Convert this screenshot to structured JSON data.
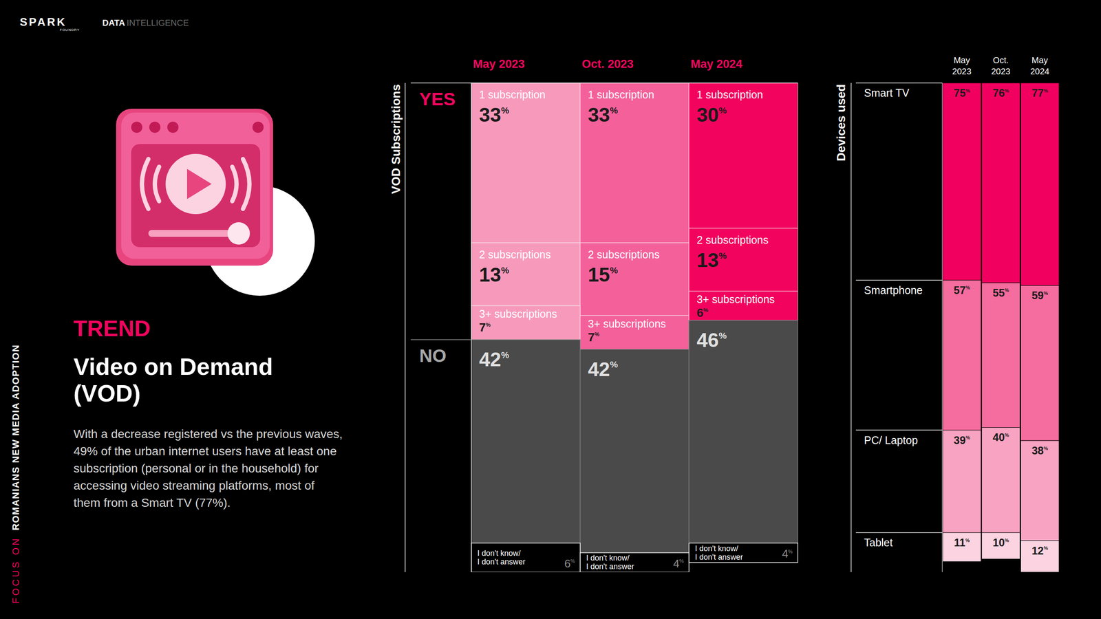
{
  "header": {
    "brand": "SPARK",
    "brand_sub": "FOUNDRY",
    "partner": "DATA INTELLIGENCE"
  },
  "side_label": {
    "prefix": "FOCUS ON",
    "text": "ROMANIANS NEW MEDIA ADOPTION"
  },
  "kicker": "TREND",
  "title": "Video on Demand (VOD)",
  "body": "With a decrease registered vs the previous waves, 49% of the urban internet users have at least one subscription (personal or in the household) for accessing video streaming platforms, most of them from a Smart TV (77%).",
  "chart_data": [
    {
      "type": "bar",
      "stacked": true,
      "y_label": "VOD Subscriptions",
      "categories": [
        "May 2023",
        "Oct. 2023",
        "May 2024"
      ],
      "ylim": [
        0,
        101
      ],
      "tick_labels": "x",
      "data_labels": true,
      "series": [
        {
          "name": "1 subscription",
          "values": [
            33,
            33,
            30
          ],
          "value_labels": [
            "33%",
            "33%",
            "30%"
          ],
          "colors": [
            "#f799bb",
            "#f4609a",
            "#f2045e"
          ]
        },
        {
          "name": "2 subscriptions",
          "values": [
            13,
            15,
            13
          ],
          "value_labels": [
            "13%",
            "15%",
            "13%"
          ],
          "colors": [
            "#f799bb",
            "#f4609a",
            "#f2045e"
          ]
        },
        {
          "name": "3+ subscriptions",
          "values": [
            7,
            7,
            6
          ],
          "value_labels": [
            "7%",
            "7%",
            "6%"
          ],
          "colors": [
            "#f799bb",
            "#f4609a",
            "#f2045e"
          ]
        },
        {
          "values": [
            42,
            42,
            46
          ],
          "value_labels": [
            "42%",
            "42%",
            "46%"
          ],
          "color": "#4a4a4a"
        },
        {
          "name": "I don't know/ I don't answer",
          "values": [
            6,
            4,
            4
          ],
          "value_labels": [
            "6%",
            "4%",
            "4%"
          ],
          "color": "#000000"
        }
      ],
      "annotations": [
        {
          "text": "YES",
          "series": 0
        },
        {
          "text": "NO",
          "series": 3
        }
      ]
    },
    {
      "type": "bar",
      "stacked": true,
      "y_label": "Devices used",
      "categories": [
        "May 2023",
        "Oct. 2023",
        "May 2024"
      ],
      "ylim": [
        0,
        186
      ],
      "tick_labels": "x",
      "data_labels": true,
      "series": [
        {
          "name": "Smart TV",
          "values": [
            75,
            76,
            77
          ],
          "value_labels": [
            "75%",
            "76%",
            "77%"
          ],
          "color": "#f2005f"
        },
        {
          "name": "Smartphone",
          "values": [
            57,
            55,
            59
          ],
          "value_labels": [
            "57%",
            "55%",
            "59%"
          ],
          "color": "#f56c9e"
        },
        {
          "name": "PC/ Laptop",
          "values": [
            39,
            40,
            38
          ],
          "value_labels": [
            "39%",
            "40%",
            "38%"
          ],
          "color": "#f8a3c2"
        },
        {
          "name": "Tablet",
          "values": [
            11,
            10,
            12
          ],
          "value_labels": [
            "11%",
            "10%",
            "12%"
          ],
          "color": "#fbd3e1"
        }
      ]
    }
  ]
}
